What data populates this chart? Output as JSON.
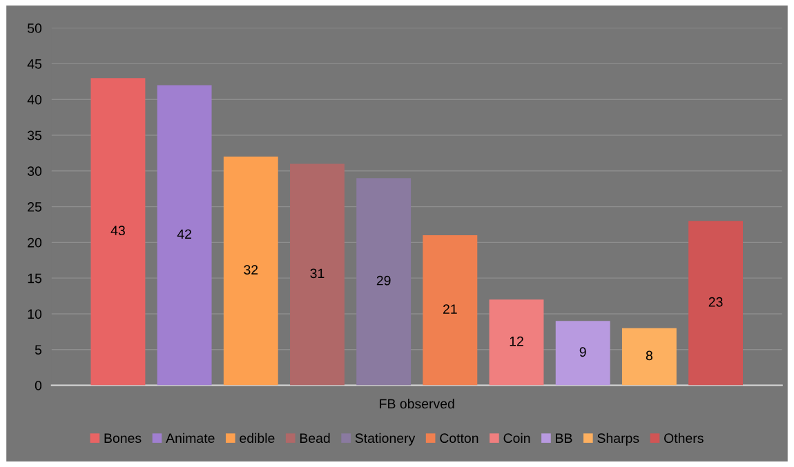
{
  "chart_data": {
    "type": "bar",
    "categories": [
      "FB observed"
    ],
    "series": [
      {
        "name": "Bones",
        "color": "#e86464",
        "values": [
          43
        ]
      },
      {
        "name": "Animate",
        "color": "#a07fd0",
        "values": [
          42
        ]
      },
      {
        "name": "edible",
        "color": "#fda050",
        "values": [
          32
        ]
      },
      {
        "name": "Bead",
        "color": "#b06868",
        "values": [
          31
        ]
      },
      {
        "name": "Stationery",
        "color": "#8a7aa0",
        "values": [
          29
        ]
      },
      {
        "name": "Cotton",
        "color": "#f08050",
        "values": [
          21
        ]
      },
      {
        "name": "Coin",
        "color": "#f07f7f",
        "values": [
          12
        ]
      },
      {
        "name": "BB",
        "color": "#b89ae0",
        "values": [
          9
        ]
      },
      {
        "name": "Sharps",
        "color": "#fdb060",
        "values": [
          8
        ]
      },
      {
        "name": "Others",
        "color": "#d05555",
        "values": [
          23
        ]
      }
    ],
    "ylim": [
      0,
      50
    ],
    "yticks": [
      0,
      5,
      10,
      15,
      20,
      25,
      30,
      35,
      40,
      45,
      50
    ],
    "grid": "y",
    "legend": "bottom",
    "data_labels": true
  }
}
